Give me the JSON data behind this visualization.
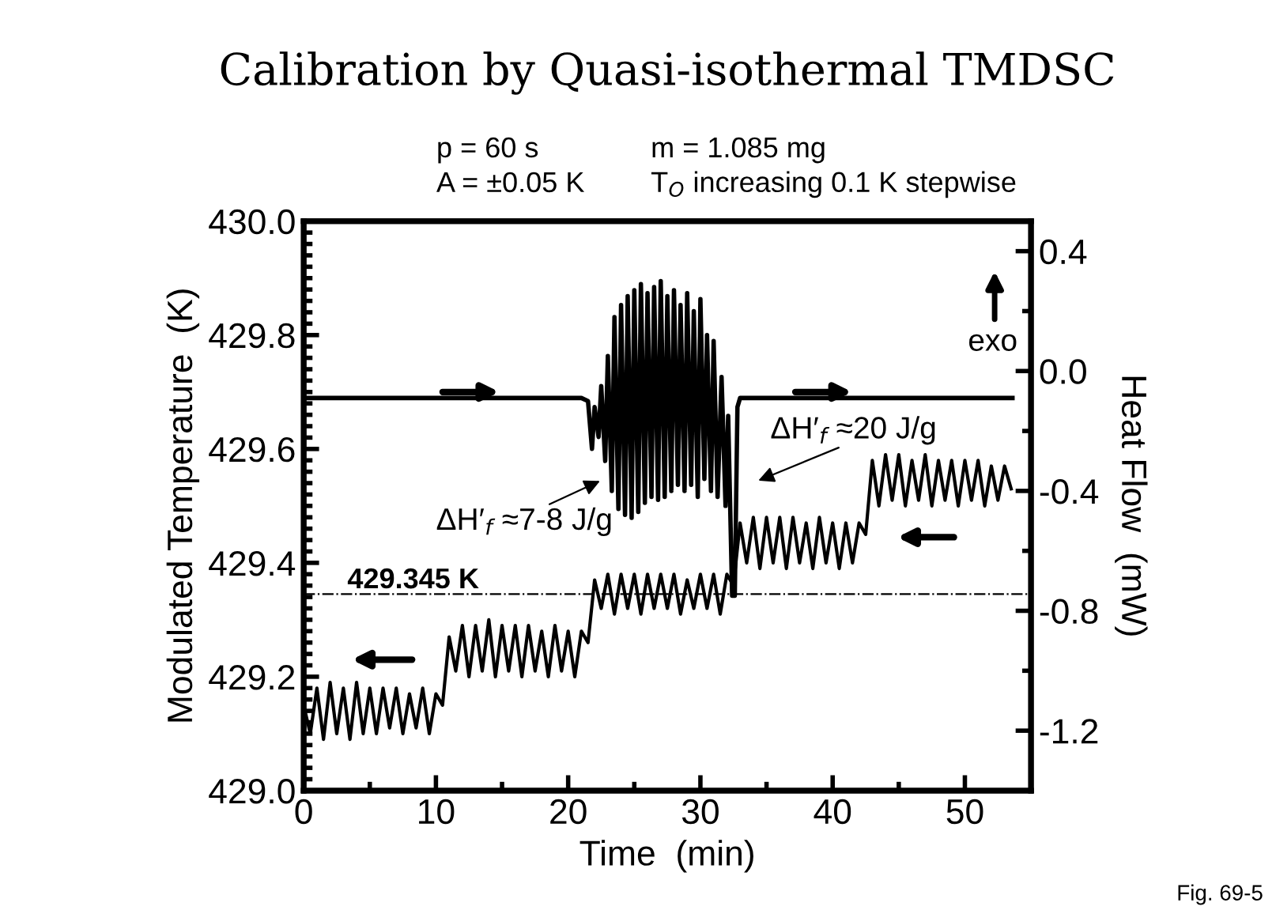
{
  "chart_data": {
    "type": "line",
    "title": "Calibration by Quasi-isothermal TMDSC",
    "xlabel": "Time  (min)",
    "ylabel": "Modulated Temperature  (K)",
    "y2label": "Heat Flow  (mW)",
    "xlim": [
      0,
      55
    ],
    "xticks": [
      0,
      10,
      20,
      30,
      40,
      50
    ],
    "ylim": [
      429.0,
      430.0
    ],
    "yticks": [
      {
        "value": 429.0,
        "label": "429.0"
      },
      {
        "value": 429.2,
        "label": "429.2"
      },
      {
        "value": 429.4,
        "label": "429.4"
      },
      {
        "value": 429.6,
        "label": "429.6"
      },
      {
        "value": 429.8,
        "label": "429.8"
      },
      {
        "value": 430.0,
        "label": "430.0"
      }
    ],
    "y2lim": [
      -1.4,
      0.5
    ],
    "y2ticks": [
      {
        "value": -1.2,
        "label": "-1.2"
      },
      {
        "value": -0.8,
        "label": "-0.8"
      },
      {
        "value": -0.4,
        "label": "-0.4"
      },
      {
        "value": 0.0,
        "label": "0.0"
      },
      {
        "value": 0.4,
        "label": "0.4"
      }
    ],
    "grid": false,
    "marker": "none",
    "series": [
      {
        "color": "#000000",
        "x": [
          0,
          0.5,
          1.0,
          1.5,
          2.0,
          2.5,
          3.0,
          3.5,
          4.0,
          4.5,
          5.0,
          5.5,
          6.0,
          6.5,
          7.0,
          7.5,
          8.0,
          8.5,
          9.0,
          9.5,
          10.0,
          10.5,
          11.0,
          11.5,
          12.0,
          12.5,
          13.0,
          13.5,
          14.0,
          14.5,
          15.0,
          15.5,
          16.0,
          16.5,
          17.0,
          17.5,
          18.0,
          18.5,
          19.0,
          19.5,
          20.0,
          20.5,
          21.0,
          21.5,
          22.0,
          22.5,
          23.0,
          23.5,
          24.0,
          24.5,
          25.0,
          25.5,
          26.0,
          26.5,
          27.0,
          27.5,
          28.0,
          28.5,
          29.0,
          29.5,
          30.0,
          30.5,
          31.0,
          31.5,
          32.0,
          32.5,
          33.0,
          33.5,
          34.0,
          34.5,
          35.0,
          35.5,
          36.0,
          36.5,
          37.0,
          37.5,
          38.0,
          38.5,
          39.0,
          39.5,
          40.0,
          40.5,
          41.0,
          41.5,
          42.0,
          42.5,
          43.0,
          43.5,
          44.0,
          44.5,
          45.0,
          45.5,
          46.0,
          46.5,
          47.0,
          47.5,
          48.0,
          48.5,
          49.0,
          49.5,
          50.0,
          50.5,
          51.0,
          51.5,
          52.0,
          52.5,
          53.0,
          53.5
        ],
        "values": [
          429.15,
          429.1,
          429.18,
          429.09,
          429.19,
          429.1,
          429.18,
          429.09,
          429.19,
          429.1,
          429.18,
          429.1,
          429.18,
          429.11,
          429.18,
          429.1,
          429.17,
          429.11,
          429.18,
          429.1,
          429.17,
          429.15,
          429.27,
          429.21,
          429.29,
          429.2,
          429.29,
          429.21,
          429.3,
          429.2,
          429.29,
          429.21,
          429.29,
          429.2,
          429.29,
          429.21,
          429.28,
          429.2,
          429.29,
          429.21,
          429.28,
          429.2,
          429.28,
          429.26,
          429.37,
          429.32,
          429.38,
          429.31,
          429.38,
          429.32,
          429.38,
          429.31,
          429.38,
          429.32,
          429.38,
          429.32,
          429.38,
          429.31,
          429.37,
          429.32,
          429.38,
          429.32,
          429.38,
          429.31,
          429.38,
          429.36,
          429.47,
          429.4,
          429.48,
          429.39,
          429.48,
          429.4,
          429.48,
          429.39,
          429.48,
          429.4,
          429.47,
          429.39,
          429.48,
          429.4,
          429.47,
          429.39,
          429.47,
          429.4,
          429.47,
          429.45,
          429.58,
          429.5,
          429.59,
          429.51,
          429.59,
          429.5,
          429.58,
          429.51,
          429.59,
          429.5,
          429.58,
          429.51,
          429.58,
          429.5,
          429.58,
          429.51,
          429.58,
          429.5,
          429.57,
          429.51,
          429.57,
          429.53
        ]
      },
      {
        "color": "#000000",
        "axis": "y2",
        "x": [
          0,
          21.0,
          21.5,
          21.8,
          22.0,
          22.3,
          22.5,
          22.8,
          23.0,
          23.3,
          23.5,
          23.8,
          24.0,
          24.3,
          24.5,
          24.8,
          25.0,
          25.3,
          25.5,
          25.8,
          26.0,
          26.3,
          26.5,
          26.8,
          27.0,
          27.3,
          27.5,
          27.8,
          28.0,
          28.3,
          28.5,
          28.8,
          29.0,
          29.3,
          29.5,
          29.8,
          30.0,
          30.3,
          30.5,
          30.8,
          31.0,
          31.3,
          31.6,
          31.9,
          32.1,
          32.4,
          32.6,
          32.8,
          33.0,
          53.6
        ],
        "values": [
          -0.09,
          -0.09,
          -0.1,
          -0.26,
          -0.12,
          -0.22,
          -0.05,
          -0.3,
          0.05,
          -0.4,
          0.18,
          -0.46,
          0.22,
          -0.48,
          0.25,
          -0.49,
          0.27,
          -0.47,
          0.29,
          -0.44,
          0.26,
          -0.42,
          0.28,
          -0.43,
          0.3,
          -0.42,
          0.25,
          -0.4,
          0.27,
          -0.38,
          0.22,
          -0.4,
          0.26,
          -0.38,
          0.2,
          -0.42,
          0.24,
          -0.36,
          0.12,
          -0.4,
          0.1,
          -0.42,
          -0.02,
          -0.45,
          -0.15,
          -0.75,
          -0.75,
          -0.12,
          -0.09,
          -0.09
        ]
      }
    ],
    "ref_lines": [
      {
        "axis": "y",
        "value": 429.345,
        "label": "429.345 K",
        "line_style": "dashdot",
        "color": "#000000"
      }
    ],
    "annotations": [
      "p = 60 s",
      "m = 1.085 mg",
      "A = ±0.05 K",
      "T$_{O}$ increasing 0.1 K stepwise",
      "ΔH′$_{f}$ ≈7-8 J/g",
      "ΔH′$_{f}$ ≈20 J/g",
      "exo",
      "Fig. 69-5"
    ]
  }
}
